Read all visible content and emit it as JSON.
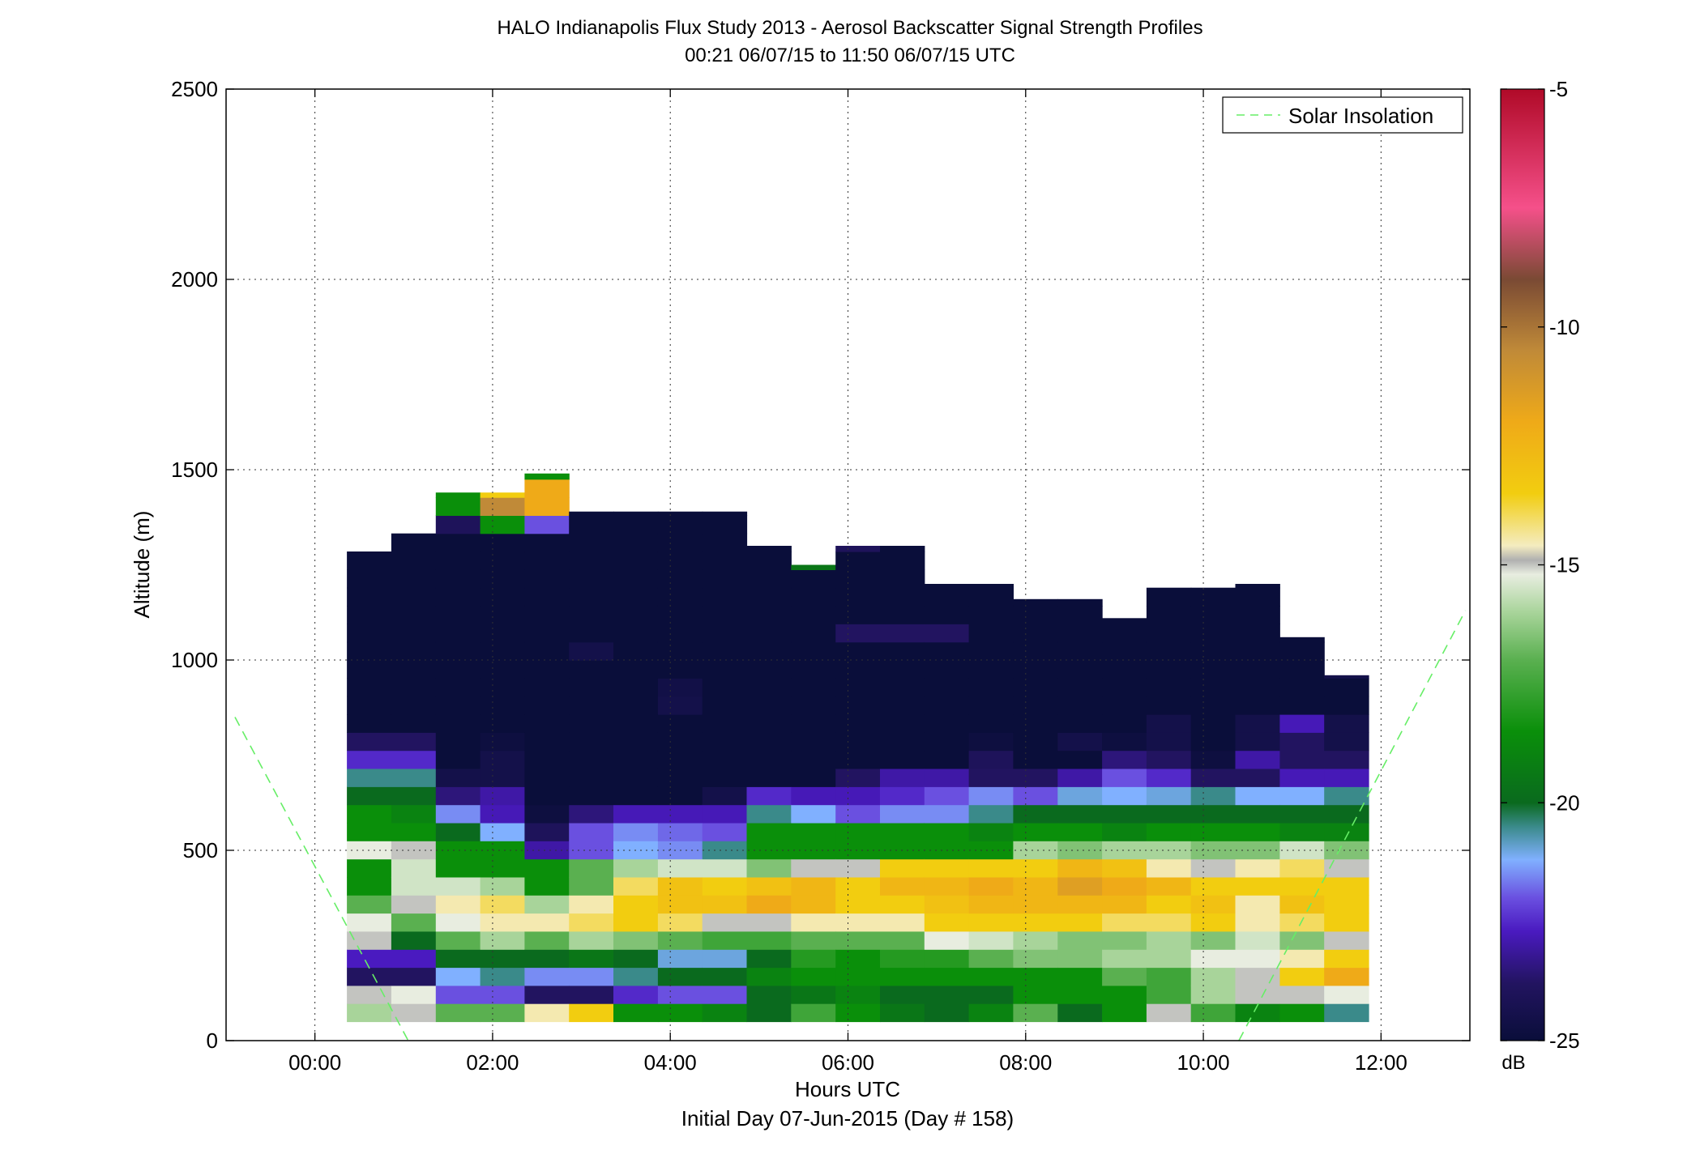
{
  "chart_data": {
    "type": "heatmap",
    "title": "HALO Indianapolis Flux Study 2013 - Aerosol Backscatter Signal Strength Profiles",
    "subtitle": "00:21 06/07/15 to 11:50 06/07/15  UTC",
    "xlabel": "Hours UTC",
    "xlabel2": "Initial Day 07-Jun-2015 (Day # 158)",
    "ylabel": "Altitude (m)",
    "xlim": [
      -1,
      13
    ],
    "ylim": [
      0,
      2500
    ],
    "x_ticks": [
      0,
      2,
      4,
      6,
      8,
      10,
      12
    ],
    "x_tick_labels": [
      "00:00",
      "02:00",
      "04:00",
      "06:00",
      "08:00",
      "10:00",
      "12:00"
    ],
    "y_ticks": [
      0,
      500,
      1000,
      1500,
      2000,
      2500
    ],
    "y_tick_labels": [
      "0",
      "500",
      "1000",
      "1500",
      "2000",
      "2500"
    ],
    "grid": true,
    "legend": {
      "position": "top-right",
      "entries": [
        {
          "label": "Solar Insolation",
          "color": "#66ee66",
          "style": "dashed"
        }
      ]
    },
    "colorbar": {
      "label": "dB",
      "range": [
        -25,
        -5
      ],
      "ticks": [
        -25,
        -20,
        -15,
        -10,
        -5
      ],
      "tick_labels": [
        "-25",
        "-20",
        "-15",
        "-10",
        "-5"
      ],
      "stops": [
        {
          "v": -25,
          "color": "#0a0e3a"
        },
        {
          "v": -23.8,
          "color": "#221460"
        },
        {
          "v": -22.7,
          "color": "#4a1ac0"
        },
        {
          "v": -22.0,
          "color": "#6a50e0"
        },
        {
          "v": -21.2,
          "color": "#80b0ff"
        },
        {
          "v": -20.5,
          "color": "#3a8a8a"
        },
        {
          "v": -20.0,
          "color": "#0a6a1e"
        },
        {
          "v": -18.5,
          "color": "#0a8f0a"
        },
        {
          "v": -17.0,
          "color": "#5ab050"
        },
        {
          "v": -16.0,
          "color": "#a8d49a"
        },
        {
          "v": -15.2,
          "color": "#e8ede0"
        },
        {
          "v": -14.9,
          "color": "#b0b0b0"
        },
        {
          "v": -14.6,
          "color": "#f4ecc0"
        },
        {
          "v": -13.5,
          "color": "#f2cd10"
        },
        {
          "v": -12.0,
          "color": "#efaa18"
        },
        {
          "v": -10.5,
          "color": "#c08a38"
        },
        {
          "v": -9.0,
          "color": "#7a4a34"
        },
        {
          "v": -7.5,
          "color": "#f5508a"
        },
        {
          "v": -5,
          "color": "#b00a28"
        }
      ]
    },
    "x_start": 0.36,
    "x_step": 0.5,
    "y_step": 47.5,
    "column_tops": [
      1300,
      1350,
      1440,
      1440,
      1490,
      1390,
      1390,
      1390,
      1390,
      1300,
      1250,
      1300,
      1300,
      1200,
      1200,
      1160,
      1160,
      1110,
      1200,
      1200,
      1200,
      1060,
      960
    ],
    "columns": [
      [
        -16.0,
        -15.0,
        -23.8,
        -22.7,
        -15.0,
        -15.2,
        -17.0,
        -18.5,
        -18.5,
        -15.2,
        -18.5,
        -18.5,
        -20.0,
        -20.5,
        -22.5,
        -23.8,
        -25,
        -25,
        -25,
        -25,
        -25,
        -25,
        -25,
        -25,
        -25,
        -25
      ],
      [
        -15.0,
        -15.2,
        -23.8,
        -22.7,
        -20.0,
        -17.0,
        -15.0,
        -15.5,
        -15.5,
        -15.0,
        -18.5,
        -19.0,
        -20.0,
        -20.5,
        -22.5,
        -23.8,
        -25,
        -25,
        -25,
        -25,
        -25,
        -25,
        -25,
        -25,
        -25,
        -25,
        -25
      ],
      [
        -17.0,
        -22.0,
        -21.2,
        -20.0,
        -17.0,
        -15.2,
        -14.5,
        -15.5,
        -18.5,
        -18.5,
        -20.0,
        -21.5,
        -23.5,
        -24.5,
        -25,
        -25,
        -25,
        -25,
        -25,
        -25,
        -25,
        -25,
        -25,
        -25,
        -25,
        -25,
        -25,
        -24.0,
        -18.5,
        -18.5
      ],
      [
        -17.0,
        -22.0,
        -20.5,
        -20.0,
        -16.0,
        -14.5,
        -14.0,
        -16.0,
        -18.5,
        -18.5,
        -21.2,
        -22.8,
        -23.0,
        -24.5,
        -24.5,
        -24.8,
        -25,
        -25,
        -25,
        -25,
        -25,
        -25,
        -25,
        -25,
        -25,
        -25,
        -25,
        -18.5,
        -10.5,
        -13.5
      ],
      [
        -14.5,
        -23.8,
        -21.5,
        -20.0,
        -17.0,
        -14.5,
        -16.0,
        -18.5,
        -18.5,
        -23.0,
        -24.0,
        -24.8,
        -25,
        -25,
        -25,
        -25,
        -25,
        -25,
        -25,
        -25,
        -25,
        -25,
        -25,
        -25,
        -25,
        -25,
        -25,
        -22.0,
        -12.0,
        -12.0,
        -18.5
      ],
      [
        -13.5,
        -23.8,
        -21.5,
        -19.5,
        -16.0,
        -14.0,
        -14.5,
        -17.0,
        -17.0,
        -22.0,
        -22.0,
        -23.5,
        -25,
        -25,
        -25,
        -25,
        -25,
        -25,
        -25,
        -25,
        -24.5,
        -25,
        -25,
        -25,
        -25,
        -25,
        -25,
        -25,
        -25
      ],
      [
        -18.5,
        -22.5,
        -20.5,
        -20.0,
        -16.5,
        -13.5,
        -13.5,
        -14.0,
        -16.0,
        -21.2,
        -21.5,
        -22.8,
        -25,
        -25,
        -25,
        -25,
        -25,
        -25,
        -25,
        -25,
        -25,
        -25,
        -25,
        -25,
        -25,
        -25,
        -25,
        -25,
        -25
      ],
      [
        -18.5,
        -22.0,
        -20.0,
        -21.0,
        -17.0,
        -14.0,
        -13.0,
        -13.0,
        -15.5,
        -21.5,
        -21.8,
        -22.8,
        -25,
        -25,
        -25,
        -25,
        -25,
        -24.5,
        -24.6,
        -25,
        -25,
        -25,
        -25,
        -25,
        -25,
        -25,
        -25,
        -25,
        -25
      ],
      [
        -19.0,
        -22.0,
        -20.0,
        -21.0,
        -17.5,
        -15.0,
        -13.0,
        -13.5,
        -15.5,
        -20.5,
        -22.0,
        -22.8,
        -24.5,
        -25,
        -25,
        -25,
        -25,
        -25,
        -25,
        -25,
        -25,
        -25,
        -25,
        -25,
        -25,
        -25,
        -25,
        -25,
        -25
      ],
      [
        -20.0,
        -20.0,
        -19.0,
        -20.0,
        -17.5,
        -15.0,
        -12.0,
        -13.0,
        -16.5,
        -18.5,
        -18.5,
        -20.5,
        -22.5,
        -25,
        -25,
        -25,
        -25,
        -25,
        -25,
        -25,
        -25,
        -25,
        -25,
        -25,
        -25,
        -25,
        -25,
        -18.5,
        -24.0
      ],
      [
        -17.5,
        -19.5,
        -18.5,
        -18.0,
        -17.0,
        -14.5,
        -12.5,
        -12.5,
        -15.0,
        -18.5,
        -18.5,
        -21.2,
        -22.8,
        -25,
        -25,
        -25,
        -25,
        -25,
        -25,
        -25,
        -25,
        -25,
        -25,
        -25,
        -25,
        -19.5,
        -13.5,
        -11.0
      ],
      [
        -18.5,
        -19.0,
        -18.5,
        -18.5,
        -17.0,
        -14.5,
        -13.5,
        -13.5,
        -15.0,
        -18.5,
        -18.5,
        -22.0,
        -22.8,
        -23.8,
        -25,
        -25,
        -25,
        -25,
        -25,
        -25,
        -25,
        -23.8,
        -25,
        -25,
        -25,
        -25,
        -24.0,
        -23.5
      ],
      [
        -19.5,
        -20.0,
        -18.5,
        -18.0,
        -17.0,
        -14.5,
        -13.5,
        -12.5,
        -13.5,
        -18.5,
        -18.5,
        -21.5,
        -22.5,
        -23.0,
        -25,
        -25,
        -25,
        -25,
        -25,
        -25,
        -25,
        -23.8,
        -25,
        -25,
        -25,
        -25,
        -25
      ],
      [
        -20.0,
        -20.0,
        -18.5,
        -18.0,
        -15.2,
        -13.5,
        -13.0,
        -12.5,
        -13.5,
        -18.5,
        -18.5,
        -21.5,
        -22.0,
        -23.0,
        -25,
        -25,
        -25,
        -25,
        -25,
        -25,
        -25,
        -23.8,
        -25,
        -25,
        -25,
        -25,
        -25
      ],
      [
        -19.0,
        -20.0,
        -18.5,
        -17.0,
        -15.5,
        -13.5,
        -12.5,
        -12.0,
        -13.5,
        -18.5,
        -19.0,
        -20.5,
        -21.5,
        -23.8,
        -24.0,
        -24.8,
        -25,
        -25,
        -25,
        -25,
        -25,
        -25,
        -25,
        -25,
        -25
      ],
      [
        -17.0,
        -18.5,
        -18.5,
        -16.5,
        -16.0,
        -13.5,
        -12.5,
        -12.5,
        -13.5,
        -16.0,
        -18.5,
        -20.0,
        -22.0,
        -23.8,
        -25,
        -25,
        -25,
        -25,
        -25,
        -25,
        -25,
        -25,
        -25,
        -25,
        -25
      ],
      [
        -20.0,
        -18.5,
        -18.5,
        -16.5,
        -16.5,
        -13.5,
        -12.5,
        -11.5,
        -12.5,
        -16.5,
        -18.5,
        -20.0,
        -21.0,
        -23.0,
        -25,
        -24.5,
        -25,
        -25,
        -25,
        -25,
        -25,
        -25,
        -25,
        -25,
        -25
      ],
      [
        -18.5,
        -18.5,
        -17.0,
        -16.0,
        -16.5,
        -14.0,
        -12.5,
        -12.0,
        -13.0,
        -16.0,
        -19.0,
        -20.0,
        -21.2,
        -22.0,
        -23.5,
        -24.8,
        -25,
        -25,
        -25,
        -25,
        -25,
        -25,
        -25,
        -25,
        -25
      ],
      [
        -15.0,
        -17.5,
        -17.5,
        -16.0,
        -16.0,
        -14.0,
        -13.5,
        -12.5,
        -14.5,
        -16.0,
        -18.5,
        -20.0,
        -21.0,
        -22.5,
        -23.8,
        -24.5,
        -24.5,
        -25,
        -25,
        -25,
        -25,
        -25,
        -25,
        -25
      ],
      [
        -17.5,
        -16.0,
        -16.0,
        -15.2,
        -16.5,
        -13.5,
        -13.0,
        -13.5,
        -15.0,
        -16.5,
        -18.5,
        -20.0,
        -20.5,
        -23.8,
        -24.8,
        -25,
        -25,
        -25,
        -25,
        -25,
        -25,
        -25,
        -25,
        -25
      ],
      [
        -19.0,
        -15.0,
        -15.0,
        -15.2,
        -15.5,
        -14.5,
        -14.5,
        -13.5,
        -14.5,
        -16.5,
        -18.5,
        -20.0,
        -21.2,
        -23.8,
        -23.0,
        -24.5,
        -24.5,
        -25,
        -25,
        -25,
        -25,
        -25,
        -25,
        -25,
        -25,
        -25
      ],
      [
        -18.5,
        -15.0,
        -13.5,
        -14.5,
        -16.5,
        -14.0,
        -13.0,
        -13.5,
        -14.0,
        -15.5,
        -19.0,
        -20.0,
        -21.2,
        -22.8,
        -23.8,
        -23.8,
        -22.8,
        -25,
        -25,
        -25,
        -25,
        -25,
        -25,
        -24.0,
        -25,
        -25,
        -25,
        -25,
        -25
      ],
      [
        -20.5,
        -15.2,
        -12.0,
        -13.5,
        -15.0,
        -13.5,
        -13.5,
        -13.5,
        -15.0,
        -16.5,
        -19.0,
        -20.0,
        -20.5,
        -22.8,
        -23.8,
        -24.5,
        -24.5,
        -25,
        -25,
        -24.5
      ]
    ],
    "solar_insolation": [
      {
        "x": [
          -0.9,
          1.05
        ],
        "y": [
          850,
          0
        ]
      },
      {
        "x": [
          10.4,
          12.95
        ],
        "y": [
          0,
          1130
        ]
      }
    ]
  }
}
